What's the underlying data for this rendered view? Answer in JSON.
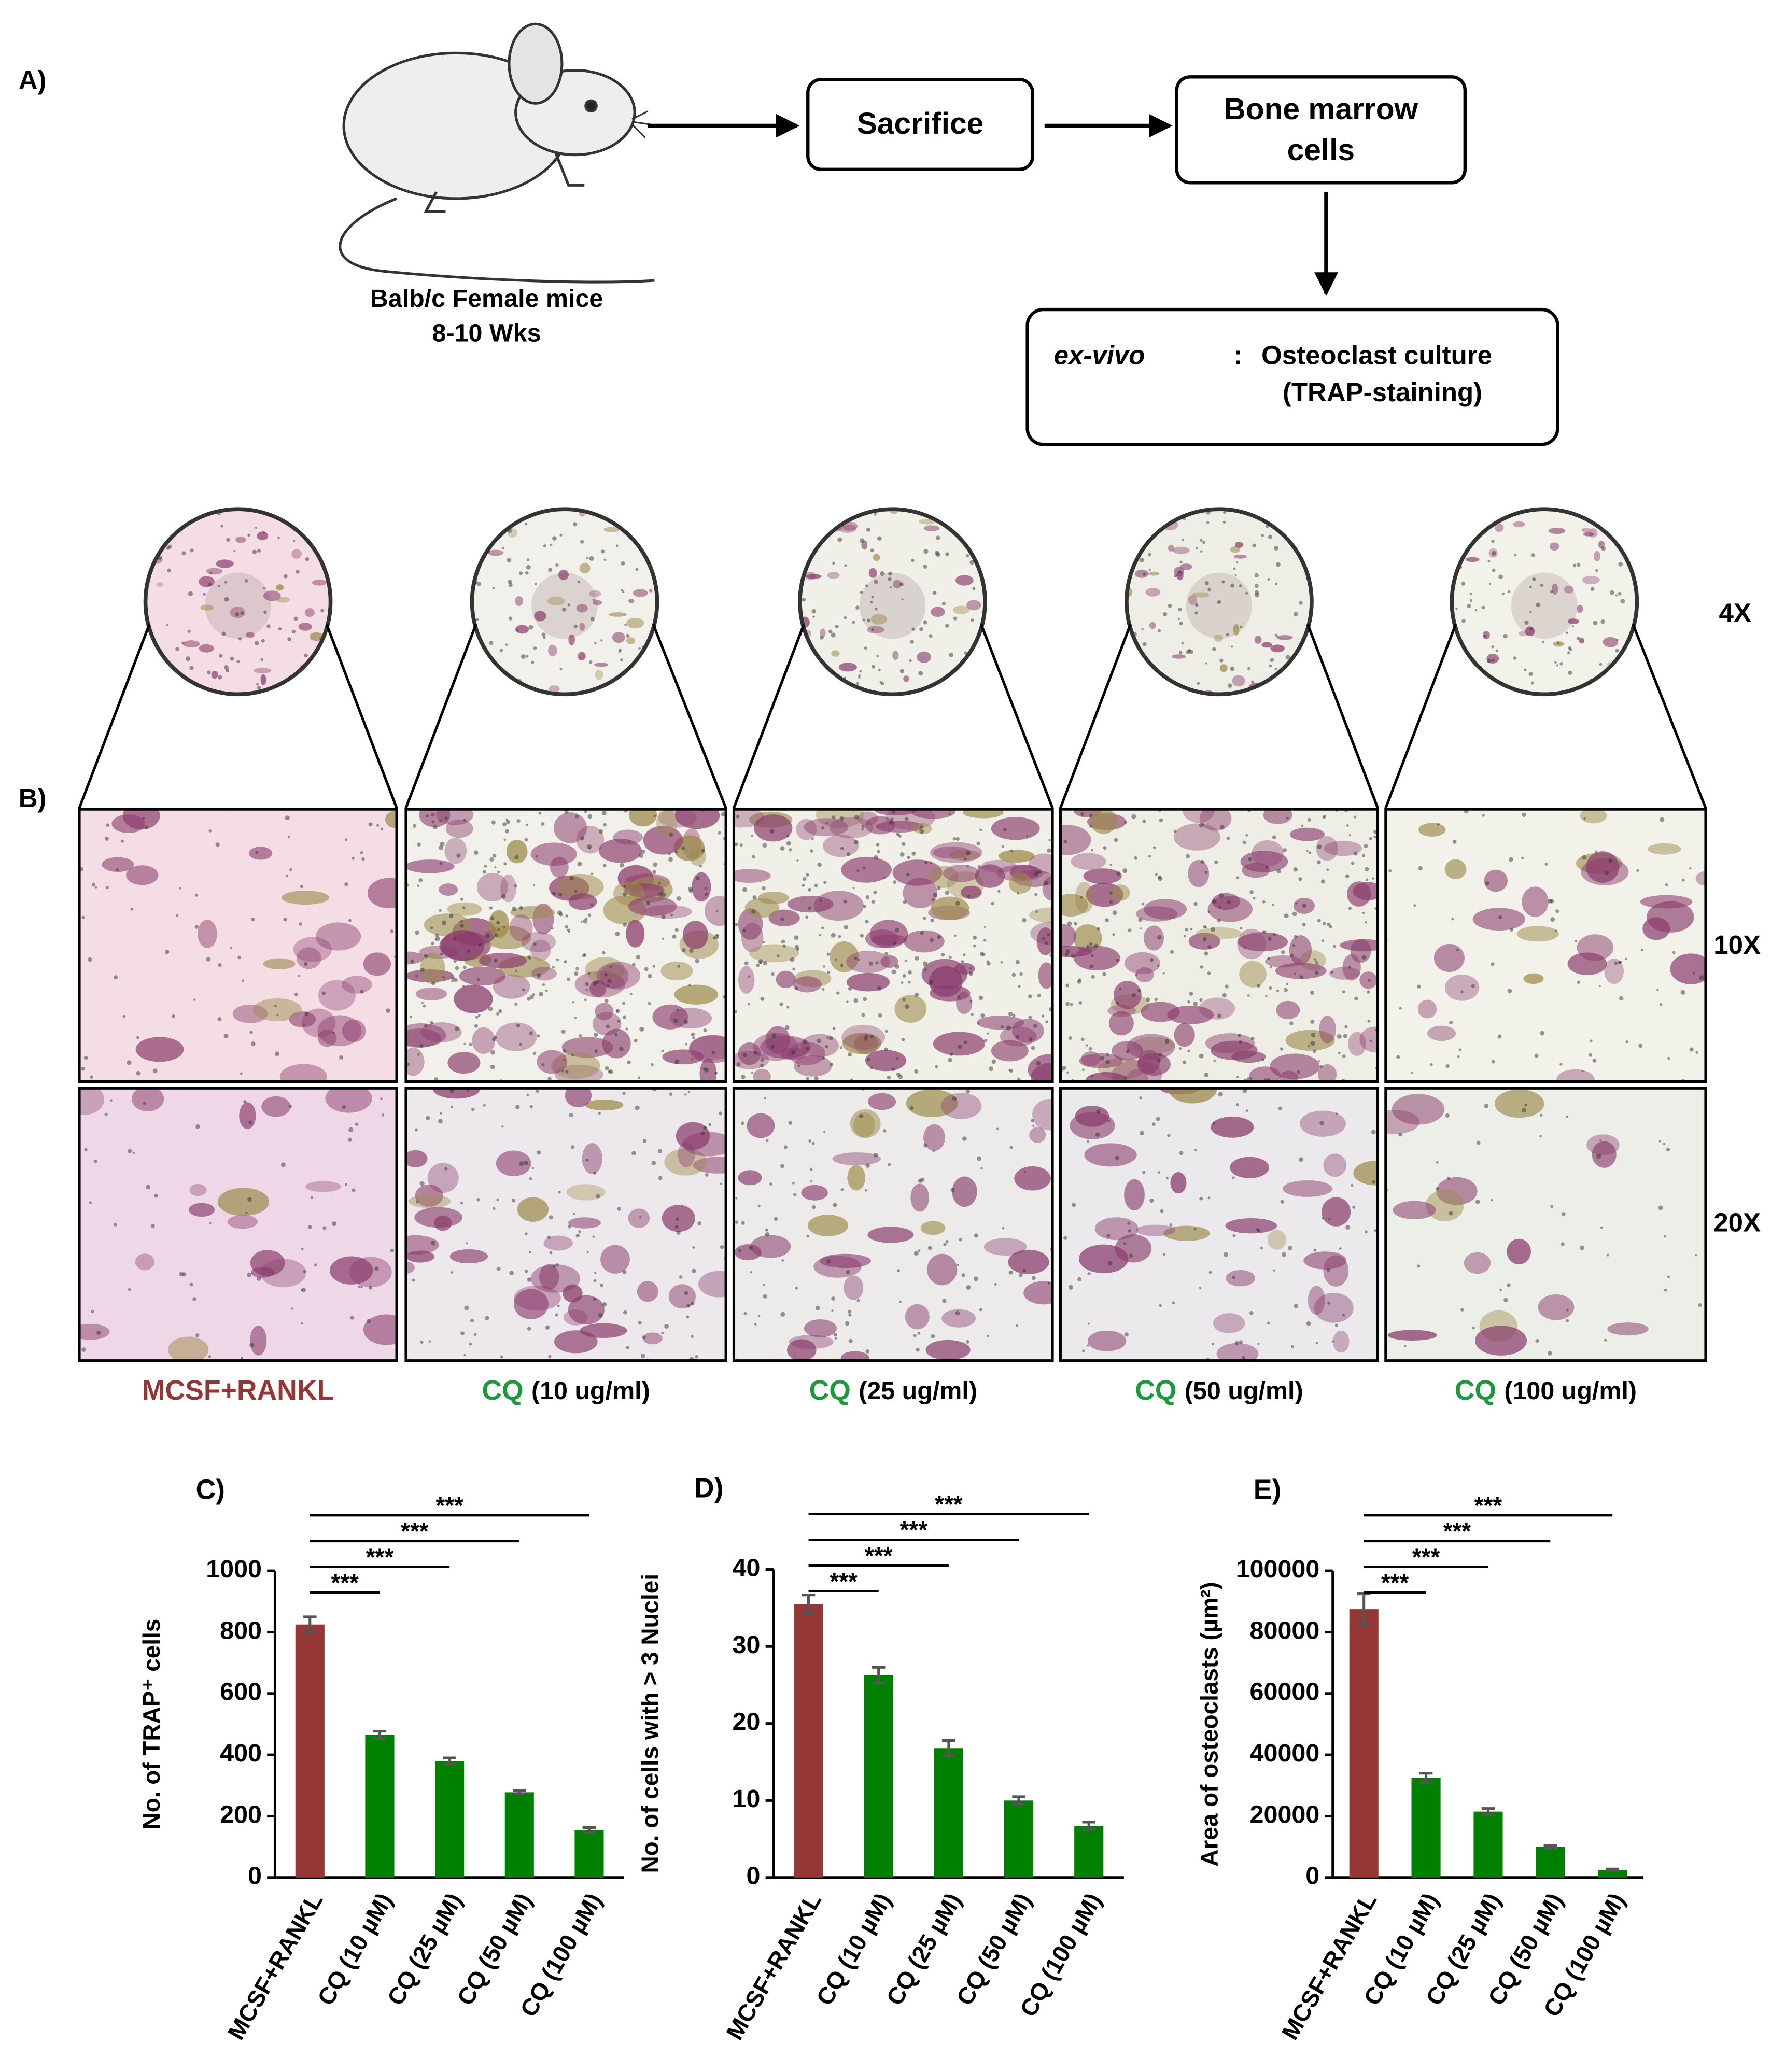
{
  "panels": {
    "a": "A)",
    "b": "B)"
  },
  "diagram": {
    "mouse_caption": [
      "Balb/c Female mice",
      "8-10  Wks"
    ],
    "step1": "Sacrifice",
    "step2": [
      "Bone marrow",
      "cells"
    ],
    "step3": {
      "mode": "ex-vivo",
      "separator": ":",
      "lines": [
        "Osteoclast culture",
        "(TRAP-staining)"
      ]
    }
  },
  "micrographs": {
    "magnifications": [
      "4X",
      "10X",
      "20X"
    ],
    "groups": [
      {
        "name": "MCSF+RANKL",
        "color": "#943634"
      },
      {
        "name": "CQ",
        "dose": "(10 ug/ml)",
        "color": "#1a9a3a"
      },
      {
        "name": "CQ",
        "dose": "(25 ug/ml)",
        "color": "#1a9a3a"
      },
      {
        "name": "CQ",
        "dose": "(50 ug/ml)",
        "color": "#1a9a3a"
      },
      {
        "name": "CQ",
        "dose": "(100 ug/ml)",
        "color": "#1a9a3a"
      }
    ]
  },
  "chart_data": [
    {
      "type": "bar",
      "panel_label": "C)",
      "ylabel": "No. of TRAP⁺ cells",
      "categories": [
        "MCSF+RANKL",
        "CQ (10 µM)",
        "CQ (25 µM)",
        "CQ (50 µM)",
        "CQ (100 µM)"
      ],
      "values": [
        825,
        465,
        380,
        278,
        155
      ],
      "errors": [
        25,
        12,
        10,
        5,
        8
      ],
      "colors": [
        "#953735",
        "#008000",
        "#008000",
        "#008000",
        "#008000"
      ],
      "ylim": [
        0,
        1000
      ],
      "yticks": [
        0,
        200,
        400,
        600,
        800,
        1000
      ],
      "significance_labels": [
        "***",
        "***",
        "***",
        "***"
      ]
    },
    {
      "type": "bar",
      "panel_label": "D)",
      "ylabel": "No. of cells with > 3 Nuclei",
      "categories": [
        "MCSF+RANKL",
        "CQ (10 µM)",
        "CQ (25 µM)",
        "CQ (50 µM)",
        "CQ (100 µM)"
      ],
      "values": [
        35.5,
        26.3,
        16.8,
        10,
        6.7
      ],
      "errors": [
        1.2,
        1,
        1,
        0.5,
        0.5
      ],
      "colors": [
        "#953735",
        "#008000",
        "#008000",
        "#008000",
        "#008000"
      ],
      "ylim": [
        0,
        40
      ],
      "yticks": [
        0,
        10,
        20,
        30,
        40
      ],
      "significance_labels": [
        "***",
        "***",
        "***",
        "***"
      ]
    },
    {
      "type": "bar",
      "panel_label": "E)",
      "ylabel": "Area of osteoclasts (µm²)",
      "categories": [
        "MCSF+RANKL",
        "CQ (10 µM)",
        "CQ (25 µM)",
        "CQ (50 µM)",
        "CQ (100 µM)"
      ],
      "values": [
        87500,
        32500,
        21500,
        10000,
        2500
      ],
      "errors": [
        5000,
        1500,
        1000,
        500,
        300
      ],
      "colors": [
        "#953735",
        "#008000",
        "#008000",
        "#008000",
        "#008000"
      ],
      "ylim": [
        0,
        100000
      ],
      "yticks": [
        0,
        20000,
        40000,
        60000,
        80000,
        100000
      ],
      "significance_labels": [
        "***",
        "***",
        "***",
        "***"
      ]
    }
  ]
}
